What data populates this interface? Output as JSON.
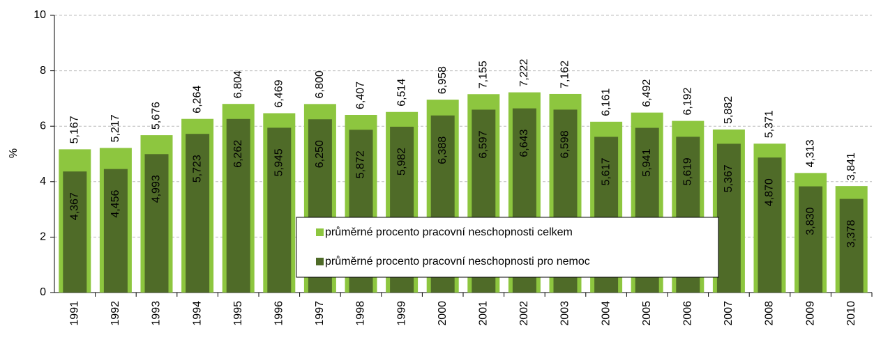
{
  "chart_data": {
    "type": "overlap_bar",
    "y_label": "%",
    "categories": [
      "1991",
      "1992",
      "1993",
      "1994",
      "1995",
      "1996",
      "1997",
      "1998",
      "1999",
      "2000",
      "2001",
      "2002",
      "2003",
      "2004",
      "2005",
      "2006",
      "2007",
      "2008",
      "2009",
      "2010"
    ],
    "series": [
      {
        "name": "průměrné procento pracovní neschopnosti celkem",
        "color": "#8dc63f",
        "values": [
          5.167,
          5.217,
          5.676,
          6.264,
          6.804,
          6.469,
          6.8,
          6.407,
          6.514,
          6.958,
          7.155,
          7.222,
          7.162,
          6.161,
          6.492,
          6.192,
          5.882,
          5.371,
          4.313,
          3.841
        ],
        "value_labels": [
          "5,167",
          "5,217",
          "5,676",
          "6,264",
          "6,804",
          "6,469",
          "6,800",
          "6,407",
          "6,514",
          "6,958",
          "7,155",
          "7,222",
          "7,162",
          "6,161",
          "6,492",
          "6,192",
          "5,882",
          "5,371",
          "4,313",
          "3,841"
        ]
      },
      {
        "name": "průměrné procento pracovní neschopnosti pro nemoc",
        "color": "#4f6b28",
        "values": [
          4.367,
          4.456,
          4.993,
          5.723,
          6.262,
          5.945,
          6.25,
          5.872,
          5.982,
          6.388,
          6.597,
          6.643,
          6.598,
          5.617,
          5.941,
          5.619,
          5.367,
          4.87,
          3.83,
          3.378
        ],
        "value_labels": [
          "4,367",
          "4,456",
          "4,993",
          "5,723",
          "6,262",
          "5,945",
          "6,250",
          "5,872",
          "5,982",
          "6,388",
          "6,597",
          "6,643",
          "6,598",
          "5,617",
          "5,941",
          "5,619",
          "5,367",
          "4,870",
          "3,830",
          "3,378"
        ]
      }
    ],
    "ylim": [
      0,
      10
    ],
    "yticks": [
      0,
      2,
      4,
      6,
      8,
      10
    ],
    "grid": true
  }
}
